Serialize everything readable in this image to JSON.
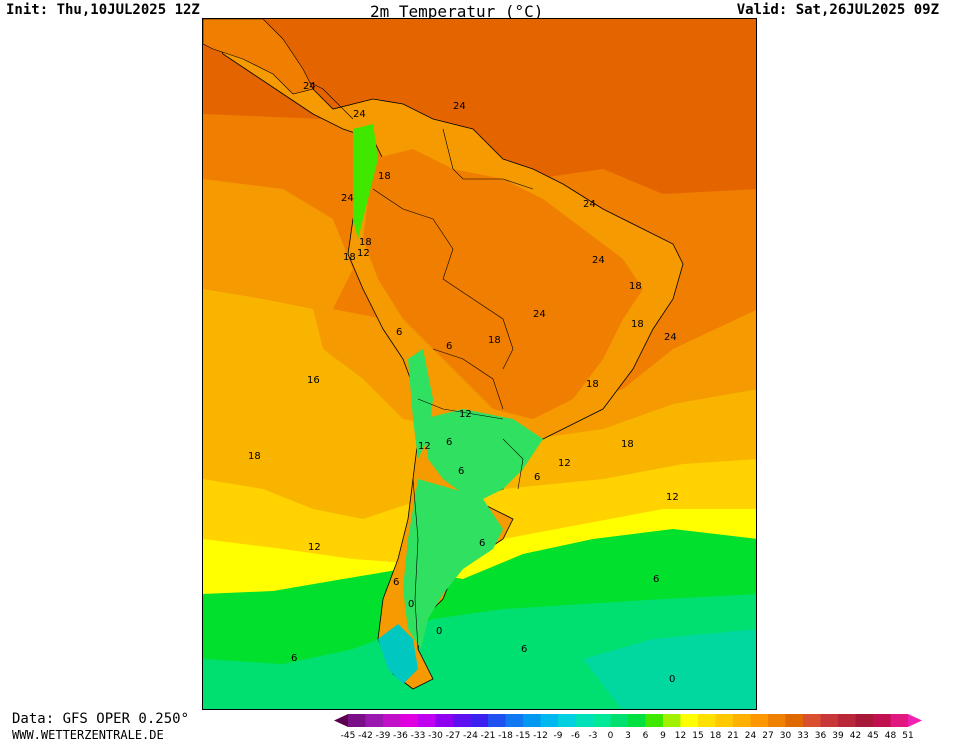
{
  "header": {
    "init": "Init: Thu,10JUL2025 12Z",
    "title": "2m Temperatur (°C)",
    "valid": "Valid: Sat,26JUL2025 09Z"
  },
  "footer": {
    "source": "Data: GFS OPER 0.250°",
    "site": "WWW.WETTERZENTRALE.DE"
  },
  "legend": {
    "ticks": [
      "-45",
      "-42",
      "-39",
      "-36",
      "-33",
      "-30",
      "-27",
      "-24",
      "-21",
      "-18",
      "-15",
      "-12",
      "-9",
      "-6",
      "-3",
      "0",
      "3",
      "6",
      "9",
      "12",
      "15",
      "18",
      "21",
      "24",
      "27",
      "30",
      "33",
      "36",
      "39",
      "42",
      "45",
      "48",
      "51"
    ],
    "colors": [
      "#5a0050",
      "#7a1088",
      "#9a18b0",
      "#c010c8",
      "#e000e0",
      "#c000f0",
      "#9000f0",
      "#6010f0",
      "#3c20f0",
      "#2050f0",
      "#1078f0",
      "#0098f0",
      "#00b8f0",
      "#00d0e0",
      "#00e0b8",
      "#00e898",
      "#00e070",
      "#00e040",
      "#40e800",
      "#a0f000",
      "#ffff00",
      "#ffe000",
      "#ffc800",
      "#ffb000",
      "#ff9800",
      "#f08000",
      "#e06800",
      "#d85030",
      "#c83838",
      "#b82838",
      "#a81838",
      "#c01050",
      "#e01880",
      "#f020b0"
    ]
  },
  "contour_labels": [
    "24",
    "24",
    "24",
    "18",
    "24",
    "24",
    "18",
    "18",
    "12",
    "24",
    "18",
    "24",
    "18",
    "24",
    "6",
    "18",
    "6",
    "18",
    "16",
    "12",
    "12",
    "6",
    "6",
    "12",
    "18",
    "6",
    "12",
    "18",
    "12",
    "6",
    "6",
    "6",
    "0",
    "0",
    "6",
    "6",
    "0"
  ],
  "colors": {
    "t27": "#e46400",
    "t24": "#f07e00",
    "t21": "#f59a00",
    "t18": "#f9b400",
    "t15": "#ffd200",
    "t12": "#ffff00",
    "t9": "#c8f000",
    "t6": "#00e02c",
    "t3": "#00e070",
    "t0": "#00d8a0",
    "land": "#30e060"
  }
}
